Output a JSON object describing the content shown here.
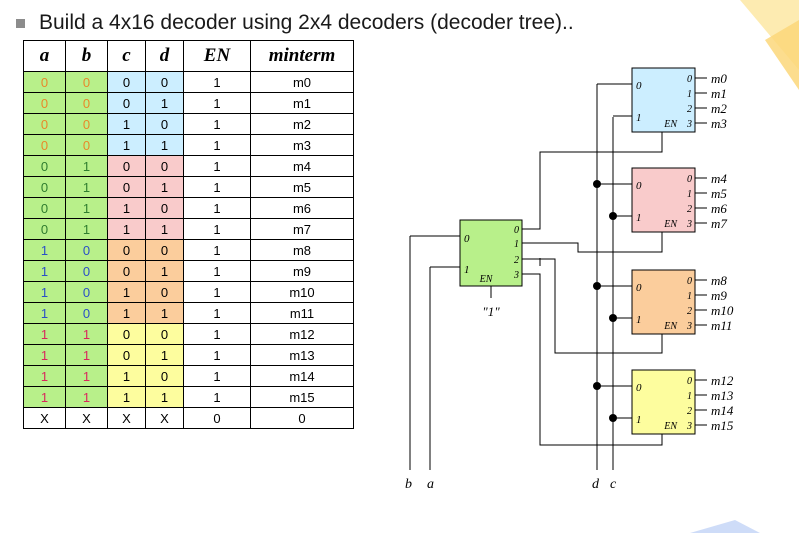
{
  "title": "Build a 4x16 decoder using 2x4 decoders  (decoder tree)..",
  "colors": {
    "green": "#b8f08a",
    "blue": "#cceeff",
    "pink": "#f9cbcb",
    "orange": "#fbcd9c",
    "yellow": "#fdfd9e",
    "text_orange": "#e8892a",
    "text_green": "#2f7d2f",
    "text_blue": "#2a4fc7",
    "text_red": "#d9285c"
  },
  "table": {
    "headers": [
      "a",
      "b",
      "c",
      "d",
      "EN",
      "minterm"
    ],
    "rows": [
      [
        "0",
        "0",
        "0",
        "0",
        "1",
        "m0"
      ],
      [
        "0",
        "0",
        "0",
        "1",
        "1",
        "m1"
      ],
      [
        "0",
        "0",
        "1",
        "0",
        "1",
        "m2"
      ],
      [
        "0",
        "0",
        "1",
        "1",
        "1",
        "m3"
      ],
      [
        "0",
        "1",
        "0",
        "0",
        "1",
        "m4"
      ],
      [
        "0",
        "1",
        "0",
        "1",
        "1",
        "m5"
      ],
      [
        "0",
        "1",
        "1",
        "0",
        "1",
        "m6"
      ],
      [
        "0",
        "1",
        "1",
        "1",
        "1",
        "m7"
      ],
      [
        "1",
        "0",
        "0",
        "0",
        "1",
        "m8"
      ],
      [
        "1",
        "0",
        "0",
        "1",
        "1",
        "m9"
      ],
      [
        "1",
        "0",
        "1",
        "0",
        "1",
        "m10"
      ],
      [
        "1",
        "0",
        "1",
        "1",
        "1",
        "m11"
      ],
      [
        "1",
        "1",
        "0",
        "0",
        "1",
        "m12"
      ],
      [
        "1",
        "1",
        "0",
        "1",
        "1",
        "m13"
      ],
      [
        "1",
        "1",
        "1",
        "0",
        "1",
        "m14"
      ],
      [
        "1",
        "1",
        "1",
        "1",
        "1",
        "m15"
      ],
      [
        "X",
        "X",
        "X",
        "X",
        "0",
        "0"
      ]
    ]
  },
  "diagram": {
    "first_stage": {
      "in0": "0",
      "in1": "1",
      "out": [
        "0",
        "1",
        "2",
        "3"
      ],
      "en": "EN",
      "en_value": "\"1\""
    },
    "second_stage": [
      {
        "outputs": [
          "m0",
          "m1",
          "m2",
          "m3"
        ]
      },
      {
        "outputs": [
          "m4",
          "m5",
          "m6",
          "m7"
        ]
      },
      {
        "outputs": [
          "m8",
          "m9",
          "m10",
          "m11"
        ]
      },
      {
        "outputs": [
          "m12",
          "m13",
          "m14",
          "m15"
        ]
      }
    ],
    "inputs_left": [
      "b",
      "a"
    ],
    "inputs_right": [
      "d",
      "c"
    ]
  }
}
